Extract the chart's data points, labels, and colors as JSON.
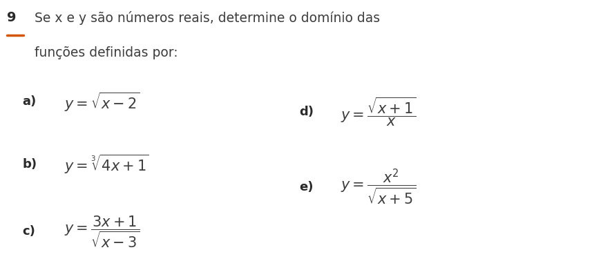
{
  "background_color": "#ffffff",
  "number_label": "9",
  "number_color": "#333333",
  "accent_color": "#d45500",
  "header_text": "Se x e y são números reais, determine o domínio das",
  "header_text2": "funções definidas por:",
  "formula_a_label": "a)",
  "formula_a": "$y = \\sqrt{x - 2}$",
  "formula_b_label": "b)",
  "formula_b": "$y = \\sqrt[3]{4x + 1}$",
  "formula_c_label": "c)",
  "formula_c": "$y = \\dfrac{3x + 1}{\\sqrt{x - 3}}$",
  "formula_d_label": "d)",
  "formula_d": "$y = \\dfrac{\\sqrt{x + 1}}{x}$",
  "formula_e_label": "e)",
  "formula_e": "$y = \\dfrac{x^2}{\\sqrt{x + 5}}$",
  "text_color": "#3d3d3d",
  "bold_color": "#2a2a2a",
  "label_fontsize": 13,
  "formula_fontsize": 15,
  "header_fontsize": 13.5,
  "number_fontsize": 14
}
